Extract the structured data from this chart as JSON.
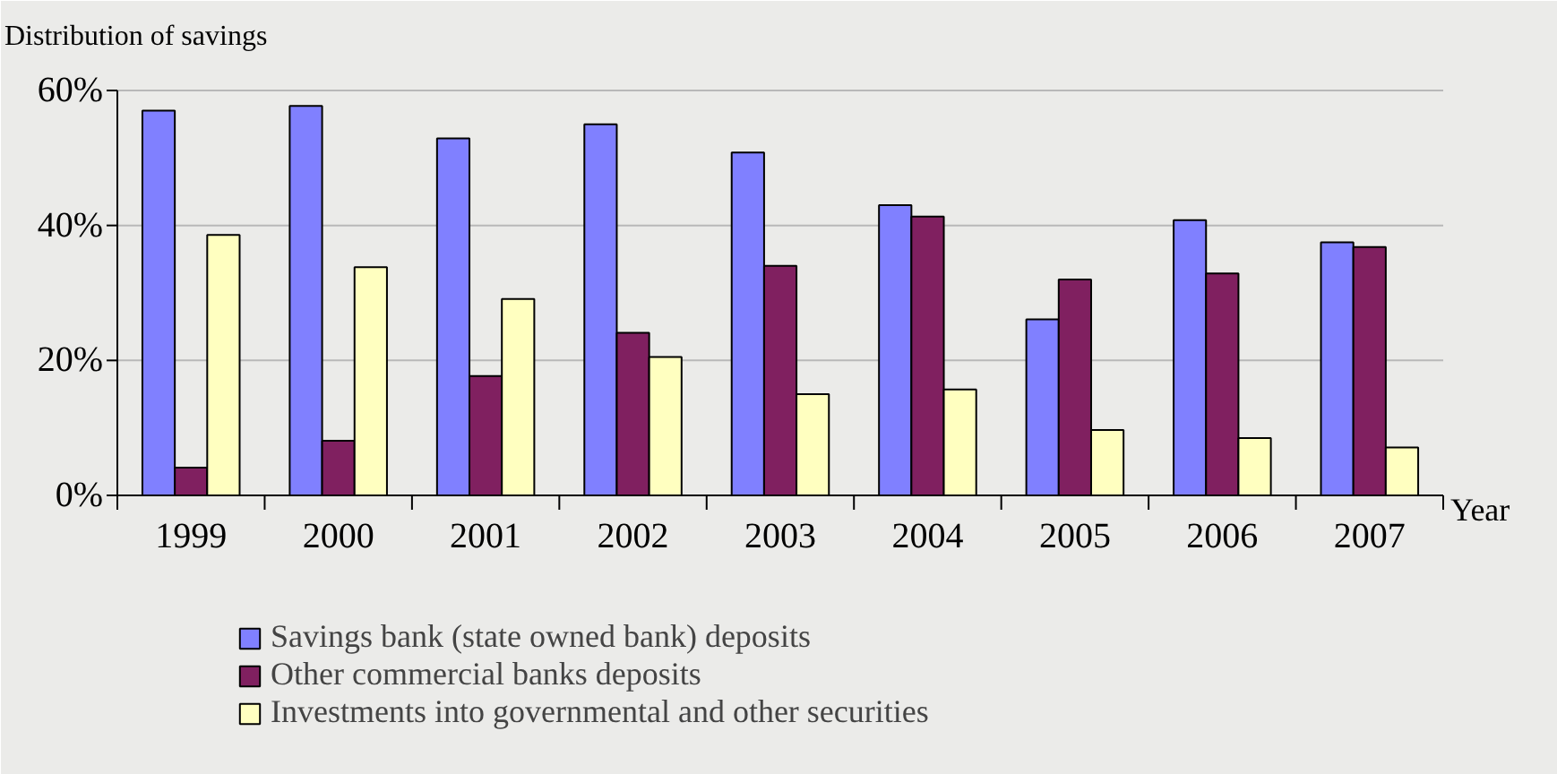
{
  "chart_data": {
    "type": "bar",
    "title": "Distribution of savings",
    "xlabel": "Year",
    "categories": [
      "1999",
      "2000",
      "2001",
      "2002",
      "2003",
      "2004",
      "2005",
      "2006",
      "2007"
    ],
    "series": [
      {
        "name": "Savings bank (state owned bank) deposits",
        "color": "#8080ff",
        "values": [
          57,
          57.7,
          52.9,
          55,
          50.8,
          43,
          26.1,
          40.8,
          37.5
        ]
      },
      {
        "name": "Other commercial banks deposits",
        "color": "#802060",
        "values": [
          4.1,
          8.1,
          17.7,
          24.1,
          34,
          41.3,
          32,
          32.9,
          36.8
        ]
      },
      {
        "name": "Investments into governmental and other securities",
        "color": "#ffffc0",
        "values": [
          38.6,
          33.8,
          29.1,
          20.5,
          15,
          15.7,
          9.7,
          8.5,
          7.1
        ]
      }
    ],
    "ylim": [
      0,
      60
    ],
    "yticks": [
      {
        "value": 0,
        "label": "0%"
      },
      {
        "value": 20,
        "label": "20%"
      },
      {
        "value": 40,
        "label": "40%"
      },
      {
        "value": 60,
        "label": "60%"
      }
    ],
    "grid": "y",
    "legend": "bottom"
  }
}
